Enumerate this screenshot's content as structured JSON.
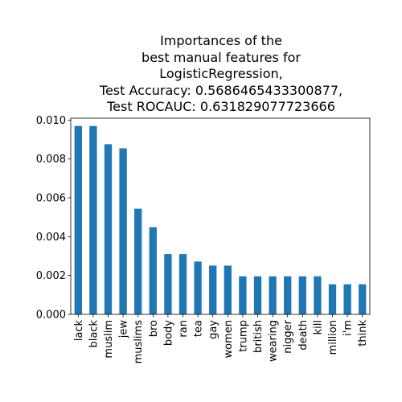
{
  "chart_data": {
    "type": "bar",
    "title_lines": [
      "Importances of the",
      "best manual features for",
      "LogisticRegression,",
      "Test Accuracy: 0.5686465433300877,",
      "Test ROCAUC: 0.631829077723666"
    ],
    "xlabel": "",
    "ylabel": "",
    "categories": [
      "lack",
      "black",
      "muslim",
      "jew",
      "muslims",
      "bro",
      "body",
      "ran",
      "tea",
      "gay",
      "women",
      "trump",
      "british",
      "wearing",
      "nigger",
      "death",
      "kill",
      "million",
      "i'm",
      "think"
    ],
    "values": [
      0.0097,
      0.0097,
      0.00876,
      0.00855,
      0.00544,
      0.00449,
      0.0031,
      0.0031,
      0.00272,
      0.00251,
      0.00251,
      0.00196,
      0.00196,
      0.00196,
      0.00196,
      0.00196,
      0.00196,
      0.00155,
      0.00155,
      0.00155
    ],
    "ylim": [
      0,
      0.0101
    ],
    "yticks": [
      "0.000",
      "0.002",
      "0.004",
      "0.006",
      "0.008",
      "0.010"
    ],
    "ytick_values": [
      0,
      0.002,
      0.004,
      0.006,
      0.008,
      0.01
    ],
    "bar_color": "#1f77b4",
    "grid": false,
    "legend": "none"
  }
}
